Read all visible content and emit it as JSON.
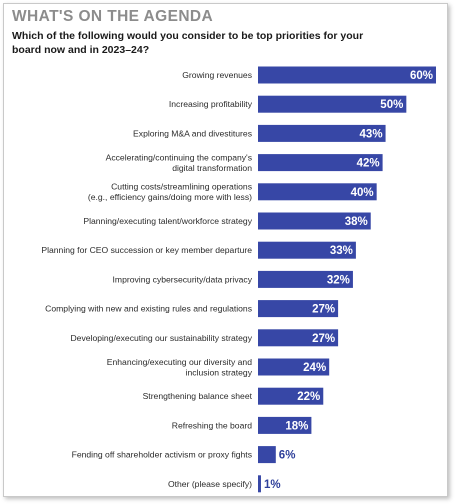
{
  "header": {
    "title": "WHAT'S ON THE AGENDA",
    "question": "Which of the following would you consider to be top priorities for your board now and in 2023–24?"
  },
  "colors": {
    "bar": "#3747a6",
    "heading": "#8c8c8c"
  },
  "chart_data": {
    "type": "bar",
    "orientation": "horizontal",
    "title": "WHAT'S ON THE AGENDA",
    "subtitle": "Which of the following would you consider to be top priorities for your board now and in 2023–24?",
    "xlabel": "",
    "ylabel": "",
    "grid": false,
    "legend": "none",
    "xlim": [
      0,
      60
    ],
    "categories": [
      [
        "Growing revenues"
      ],
      [
        "Increasing profitability"
      ],
      [
        "Exploring M&A and divestitures"
      ],
      [
        "Accelerating/continuing the company's",
        "digital transformation"
      ],
      [
        "Cutting costs/streamlining operations",
        "(e.g., efficiency gains/doing more with less)"
      ],
      [
        "Planning/executing talent/workforce strategy"
      ],
      [
        "Planning for CEO succession or key member departure"
      ],
      [
        "Improving cybersecurity/data privacy"
      ],
      [
        "Complying with new and existing rules and regulations"
      ],
      [
        "Developing/executing our sustainability strategy"
      ],
      [
        "Enhancing/executing our diversity and",
        "inclusion strategy"
      ],
      [
        "Strengthening balance sheet"
      ],
      [
        "Refreshing the board"
      ],
      [
        "Fending off shareholder activism or proxy fights"
      ],
      [
        "Other (please specify)"
      ]
    ],
    "values": [
      60,
      50,
      43,
      42,
      40,
      38,
      33,
      32,
      27,
      27,
      24,
      22,
      18,
      6,
      1
    ],
    "value_labels": [
      "60%",
      "50%",
      "43%",
      "42%",
      "40%",
      "38%",
      "33%",
      "32%",
      "27%",
      "27%",
      "24%",
      "22%",
      "18%",
      "6%",
      "1%"
    ]
  }
}
